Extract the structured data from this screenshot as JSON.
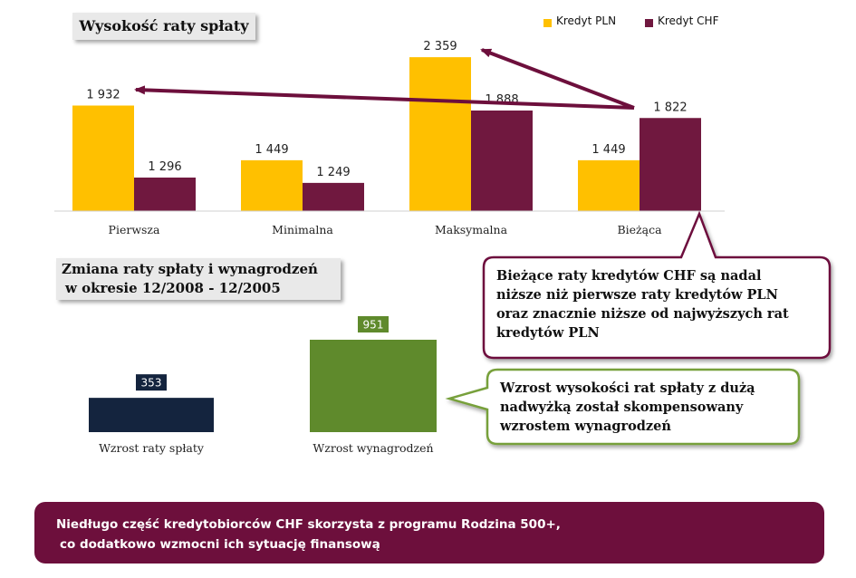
{
  "chart_title": "Wysokość raty spłaty",
  "legend": [
    {
      "label": "Kredyt PLN",
      "color": "#ffc000"
    },
    {
      "label": "Kredyt CHF",
      "color": "#70183f"
    }
  ],
  "chart_data": [
    {
      "type": "bar",
      "title": "Wysokość raty spłaty",
      "categories": [
        "Pierwsza",
        "Minimalna",
        "Maksymalna",
        "Bieżąca"
      ],
      "series": [
        {
          "name": "Kredyt PLN",
          "values": [
            1932,
            1449,
            2359,
            1449
          ],
          "labels": [
            "1 932",
            "1 449",
            "2 359",
            "1 449"
          ],
          "color": "#ffc000"
        },
        {
          "name": "Kredyt CHF",
          "values": [
            1296,
            1249,
            1888,
            1822
          ],
          "labels": [
            "1 296",
            "1 249",
            "1 888",
            "1 822"
          ],
          "color": "#70183f"
        }
      ],
      "ylim": [
        1000,
        2400
      ],
      "grid": false,
      "legend_position": "top-right"
    },
    {
      "type": "bar",
      "title": "Zmiana raty spłaty i wynagrodzeń w okresie 12/2008 - 12/2005",
      "categories": [
        "Wzrost raty spłaty",
        "Wzrost wynagrodzeń"
      ],
      "values": [
        353,
        951
      ],
      "labels": [
        "353",
        "951"
      ],
      "colors": [
        "#14243e",
        "#5f8a2c"
      ],
      "ylim": [
        0,
        1000
      ],
      "grid": false
    }
  ],
  "chart2_title": {
    "line1": "Zmiana raty spłaty i wynagrodzeń",
    "line2": "w okresie 12/2008 - 12/2005"
  },
  "callouts": {
    "first": {
      "line1": "Bieżące raty kredytów CHF są nadal",
      "line2": "niższe niż pierwsze raty kredytów PLN",
      "line3": "oraz znacznie niższe od najwyższych rat",
      "line4": "kredytów PLN",
      "border": "#6d0f3c"
    },
    "second": {
      "line1": "Wzrost wysokości rat spłaty z dużą",
      "line2": "nadwyżką został skompensowany",
      "line3": "wzrostem wynagrodzeń",
      "border": "#77a03a"
    }
  },
  "banner": {
    "line1": "Niedługo część kredytobiorców CHF skorzysta z programu Rodzina 500+,",
    "line2": "co dodatkowo wzmocni ich sytuację finansową"
  }
}
